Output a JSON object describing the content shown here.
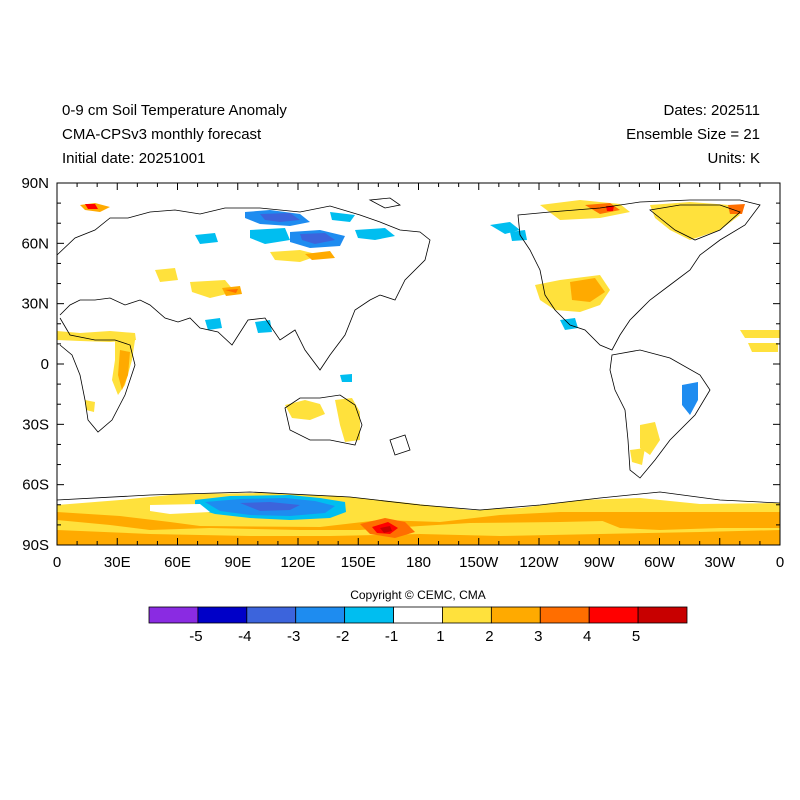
{
  "header": {
    "title_line1": "0-9 cm Soil Temperature Anomaly",
    "title_line2": "CMA-CPSv3 monthly forecast",
    "title_line3": "Initial date: 20251001",
    "dates": "Dates: 202511",
    "ensemble": "Ensemble Size = 21",
    "units": "Units: K"
  },
  "axes": {
    "lat_labels": [
      "90N",
      "60N",
      "30N",
      "0",
      "30S",
      "60S",
      "90S"
    ],
    "lon_labels": [
      "0",
      "30E",
      "60E",
      "90E",
      "120E",
      "150E",
      "180",
      "150W",
      "120W",
      "90W",
      "60W",
      "30W",
      "0"
    ]
  },
  "copyright": "Copyright © CEMC, CMA",
  "colorbar": {
    "colors": [
      "#8a2be2",
      "#0000c8",
      "#3c64dc",
      "#1e8cf0",
      "#00bef0",
      "#ffffff",
      "#ffe13c",
      "#ffaa00",
      "#ff6e00",
      "#ff0000",
      "#c80000"
    ],
    "labels": [
      "-5",
      "-4",
      "-3",
      "-2",
      "-1",
      "1",
      "2",
      "3",
      "4",
      "5"
    ]
  },
  "colors": {
    "ocean": "#ffffff",
    "coast": "#000000"
  }
}
